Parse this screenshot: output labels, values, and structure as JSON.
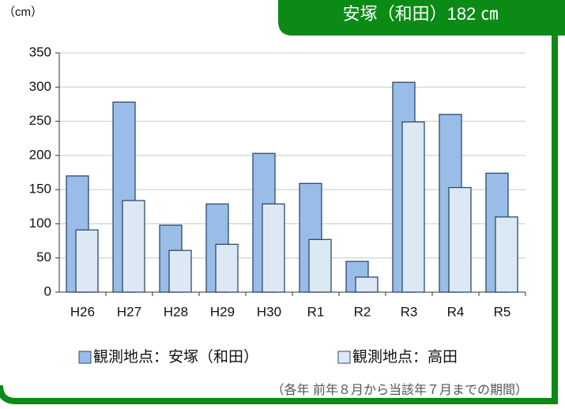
{
  "chart_data": {
    "type": "bar",
    "title": "安塚（和田）182 ㎝",
    "y_label": "（cm）",
    "footnote": "（各年 前年８月から当該年７月までの期間）",
    "categories": [
      "H26",
      "H27",
      "H28",
      "H29",
      "H30",
      "R1",
      "R2",
      "R3",
      "R4",
      "R5"
    ],
    "series": [
      {
        "name": "観測地点：安塚（和田）",
        "color": "#99bde6",
        "values": [
          170,
          278,
          98,
          129,
          203,
          159,
          45,
          307,
          260,
          174
        ]
      },
      {
        "name": "観測地点：高田",
        "color": "#dde8f5",
        "values": [
          91,
          134,
          61,
          70,
          129,
          77,
          22,
          249,
          153,
          110
        ]
      }
    ],
    "ylim": [
      0,
      350
    ],
    "yticks": [
      0,
      50,
      100,
      150,
      200,
      250,
      300,
      350
    ],
    "grid": true
  }
}
